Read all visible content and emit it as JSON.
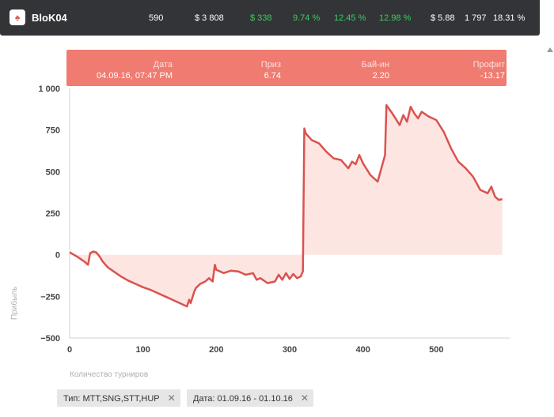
{
  "header": {
    "logo_icon": "pokerstars-spade-icon",
    "name": "BloK04",
    "stats": [
      {
        "value": "590",
        "color": "#ffffff"
      },
      {
        "value": "$ 3 808",
        "color": "#ffffff"
      },
      {
        "value": "$ 338",
        "color": "#39d05c"
      },
      {
        "value": "9.74 %",
        "color": "#39d05c"
      },
      {
        "value": "12.45 %",
        "color": "#39d05c"
      },
      {
        "value": "12.98 %",
        "color": "#39d05c"
      },
      {
        "value": "$ 5.88",
        "color": "#ffffff"
      },
      {
        "value": "1 797",
        "color": "#ffffff"
      },
      {
        "value": "18.31 %",
        "color": "#ffffff"
      }
    ]
  },
  "tooltip": {
    "date_label": "Дата",
    "date_value": "04.09.16, 07:47 PM",
    "prize_label": "Приз",
    "prize_value": "6.74",
    "buyin_label": "Бай-ин",
    "buyin_value": "2.20",
    "profit_label": "Профит",
    "profit_value": "-13.17"
  },
  "filters": [
    {
      "label": "Тип: MTT,SNG,STT,HUP",
      "close": "✕"
    },
    {
      "label": "Дата: 01.09.16 - 01.10.16",
      "close": "✕"
    }
  ],
  "chart_data": {
    "type": "area",
    "xlabel": "Количество турниров",
    "ylabel": "Прибыль",
    "xlim": [
      0,
      600
    ],
    "ylim": [
      -500,
      1000
    ],
    "x_ticks": [
      0,
      100,
      200,
      300,
      400,
      500
    ],
    "y_ticks": [
      -500,
      -250,
      0,
      250,
      500,
      750,
      1000
    ],
    "y_tick_labels": [
      "−500",
      "−250",
      "0",
      "250",
      "500",
      "750",
      "1 000"
    ],
    "line_color": "#d9534f",
    "fill_color": "#fde5e2",
    "series": [
      {
        "x": [
          0,
          10,
          20,
          25,
          28,
          32,
          36,
          40,
          45,
          52,
          60,
          70,
          80,
          90,
          100,
          110,
          120,
          130,
          140,
          150,
          155,
          160,
          163,
          165,
          170,
          172,
          178,
          185,
          190,
          195,
          198,
          200,
          205,
          210,
          220,
          230,
          240,
          250,
          255,
          260,
          270,
          280,
          285,
          290,
          295,
          300,
          305,
          310,
          315,
          318,
          320,
          322,
          330,
          340,
          350,
          360,
          370,
          380,
          385,
          390,
          395,
          400,
          410,
          420,
          430,
          432,
          440,
          450,
          455,
          460,
          465,
          470,
          475,
          480,
          490,
          500,
          510,
          520,
          530,
          540,
          550,
          560,
          570,
          575,
          580,
          585,
          590
        ],
        "y": [
          15,
          -10,
          -40,
          -60,
          10,
          20,
          15,
          -5,
          -40,
          -75,
          -100,
          -130,
          -155,
          -175,
          -195,
          -210,
          -230,
          -250,
          -270,
          -290,
          -300,
          -310,
          -270,
          -290,
          -220,
          -200,
          -175,
          -160,
          -140,
          -160,
          -60,
          -90,
          -100,
          -110,
          -95,
          -100,
          -120,
          -110,
          -150,
          -140,
          -170,
          -160,
          -120,
          -150,
          -110,
          -145,
          -115,
          -140,
          -130,
          -100,
          760,
          730,
          690,
          670,
          620,
          580,
          570,
          520,
          560,
          545,
          600,
          550,
          480,
          440,
          600,
          900,
          850,
          780,
          840,
          800,
          890,
          850,
          820,
          860,
          830,
          810,
          740,
          640,
          560,
          520,
          470,
          390,
          370,
          410,
          350,
          330,
          335
        ]
      }
    ]
  }
}
